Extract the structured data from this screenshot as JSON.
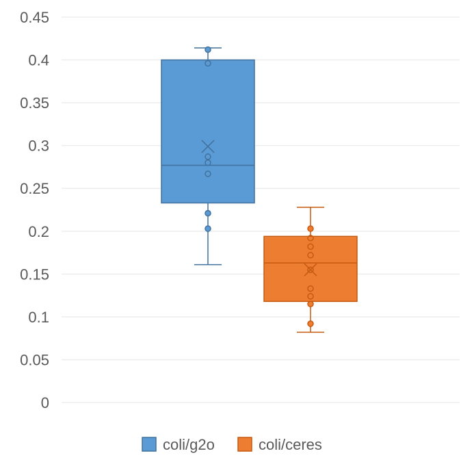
{
  "chart_data": {
    "type": "box",
    "title": "",
    "xlabel": "",
    "ylabel": "",
    "ylim": [
      0,
      0.45
    ],
    "yticks": [
      "0",
      "0.05",
      "0.1",
      "0.15",
      "0.2",
      "0.25",
      "0.3",
      "0.35",
      "0.4",
      "0.45"
    ],
    "grid": true,
    "legend_position": "bottom",
    "series": [
      {
        "name": "coli/g2o",
        "color": "#5B9BD5",
        "stroke": "#41719C",
        "min": 0.161,
        "q1": 0.233,
        "median": 0.277,
        "q3": 0.4,
        "max": 0.414,
        "mean": 0.299,
        "points": [
          0.412,
          0.396,
          0.287,
          0.28,
          0.267,
          0.221,
          0.203
        ]
      },
      {
        "name": "coli/ceres",
        "color": "#ED7D31",
        "stroke": "#C55A11",
        "min": 0.082,
        "q1": 0.118,
        "median": 0.163,
        "q3": 0.194,
        "max": 0.228,
        "mean": 0.155,
        "points": [
          0.203,
          0.192,
          0.182,
          0.172,
          0.155,
          0.133,
          0.124,
          0.115,
          0.092
        ]
      }
    ]
  }
}
